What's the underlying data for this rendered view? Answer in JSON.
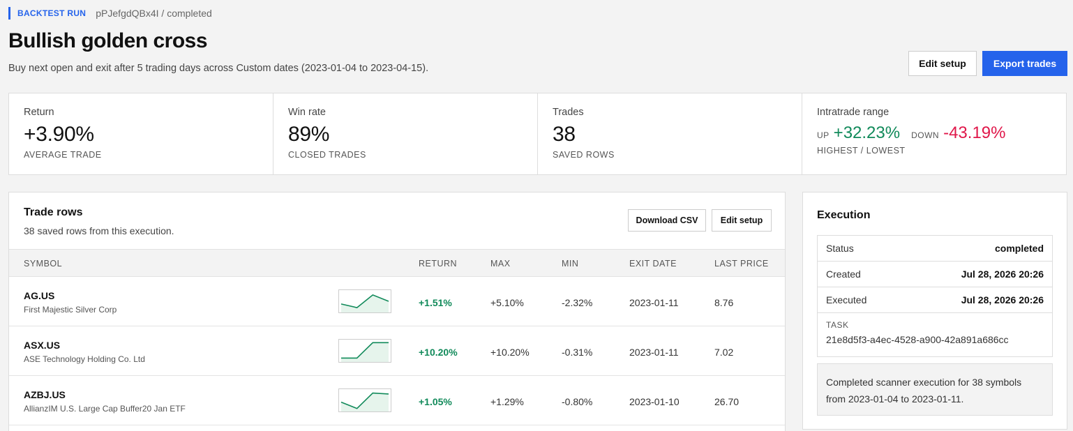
{
  "header": {
    "kicker": "BACKTEST RUN",
    "crumb": "pPJefgdQBx4I / completed",
    "title": "Bullish golden cross",
    "subtitle": "Buy next open and exit after 5 trading days across Custom dates (2023-01-04 to 2023-04-15).",
    "edit_setup": "Edit setup",
    "export_trades": "Export trades",
    "accent": "#2563eb"
  },
  "stats": {
    "return": {
      "label": "Return",
      "value": "+3.90%",
      "caption": "AVERAGE TRADE"
    },
    "win_rate": {
      "label": "Win rate",
      "value": "89%",
      "caption": "CLOSED TRADES"
    },
    "trades": {
      "label": "Trades",
      "value": "38",
      "caption": "SAVED ROWS"
    },
    "range": {
      "label": "Intratrade range",
      "up_tag": "UP",
      "up": "+32.23%",
      "down_tag": "DOWN",
      "down": "-43.19%",
      "caption": "HIGHEST / LOWEST"
    }
  },
  "trades_panel": {
    "title": "Trade rows",
    "subtitle": "38 saved rows from this execution.",
    "download_csv": "Download CSV",
    "edit_setup": "Edit setup",
    "columns": [
      "SYMBOL",
      "RETURN",
      "MAX",
      "MIN",
      "EXIT DATE",
      "LAST PRICE"
    ],
    "rows": [
      {
        "symbol": "AG.US",
        "name": "First Majestic Silver Corp",
        "return": "+1.51%",
        "max": "+5.10%",
        "min": "-2.32%",
        "exit": "2023-01-11",
        "last": "8.76",
        "spark": [
          0.35,
          0.15,
          0.85,
          0.5
        ]
      },
      {
        "symbol": "ASX.US",
        "name": "ASE Technology Holding Co. Ltd",
        "return": "+10.20%",
        "max": "+10.20%",
        "min": "-0.31%",
        "exit": "2023-01-11",
        "last": "7.02",
        "spark": [
          0.1,
          0.1,
          0.95,
          0.95
        ]
      },
      {
        "symbol": "AZBJ.US",
        "name": "AllianzIM U.S. Large Cap Buffer20 Jan ETF",
        "return": "+1.05%",
        "max": "+1.29%",
        "min": "-0.80%",
        "exit": "2023-01-10",
        "last": "26.70",
        "spark": [
          0.4,
          0.05,
          0.9,
          0.85
        ]
      }
    ],
    "up_color": "#118a5a",
    "down_color": "#e0174a"
  },
  "execution": {
    "title": "Execution",
    "status_label": "Status",
    "status": "completed",
    "created_label": "Created",
    "created": "Jul 28, 2026 20:26",
    "executed_label": "Executed",
    "executed": "Jul 28, 2026 20:26",
    "task_label": "TASK",
    "task": "21e8d5f3-a4ec-4528-a900-42a891a686cc",
    "note": "Completed scanner execution for 38 symbols from 2023-01-04 to 2023-01-11."
  }
}
